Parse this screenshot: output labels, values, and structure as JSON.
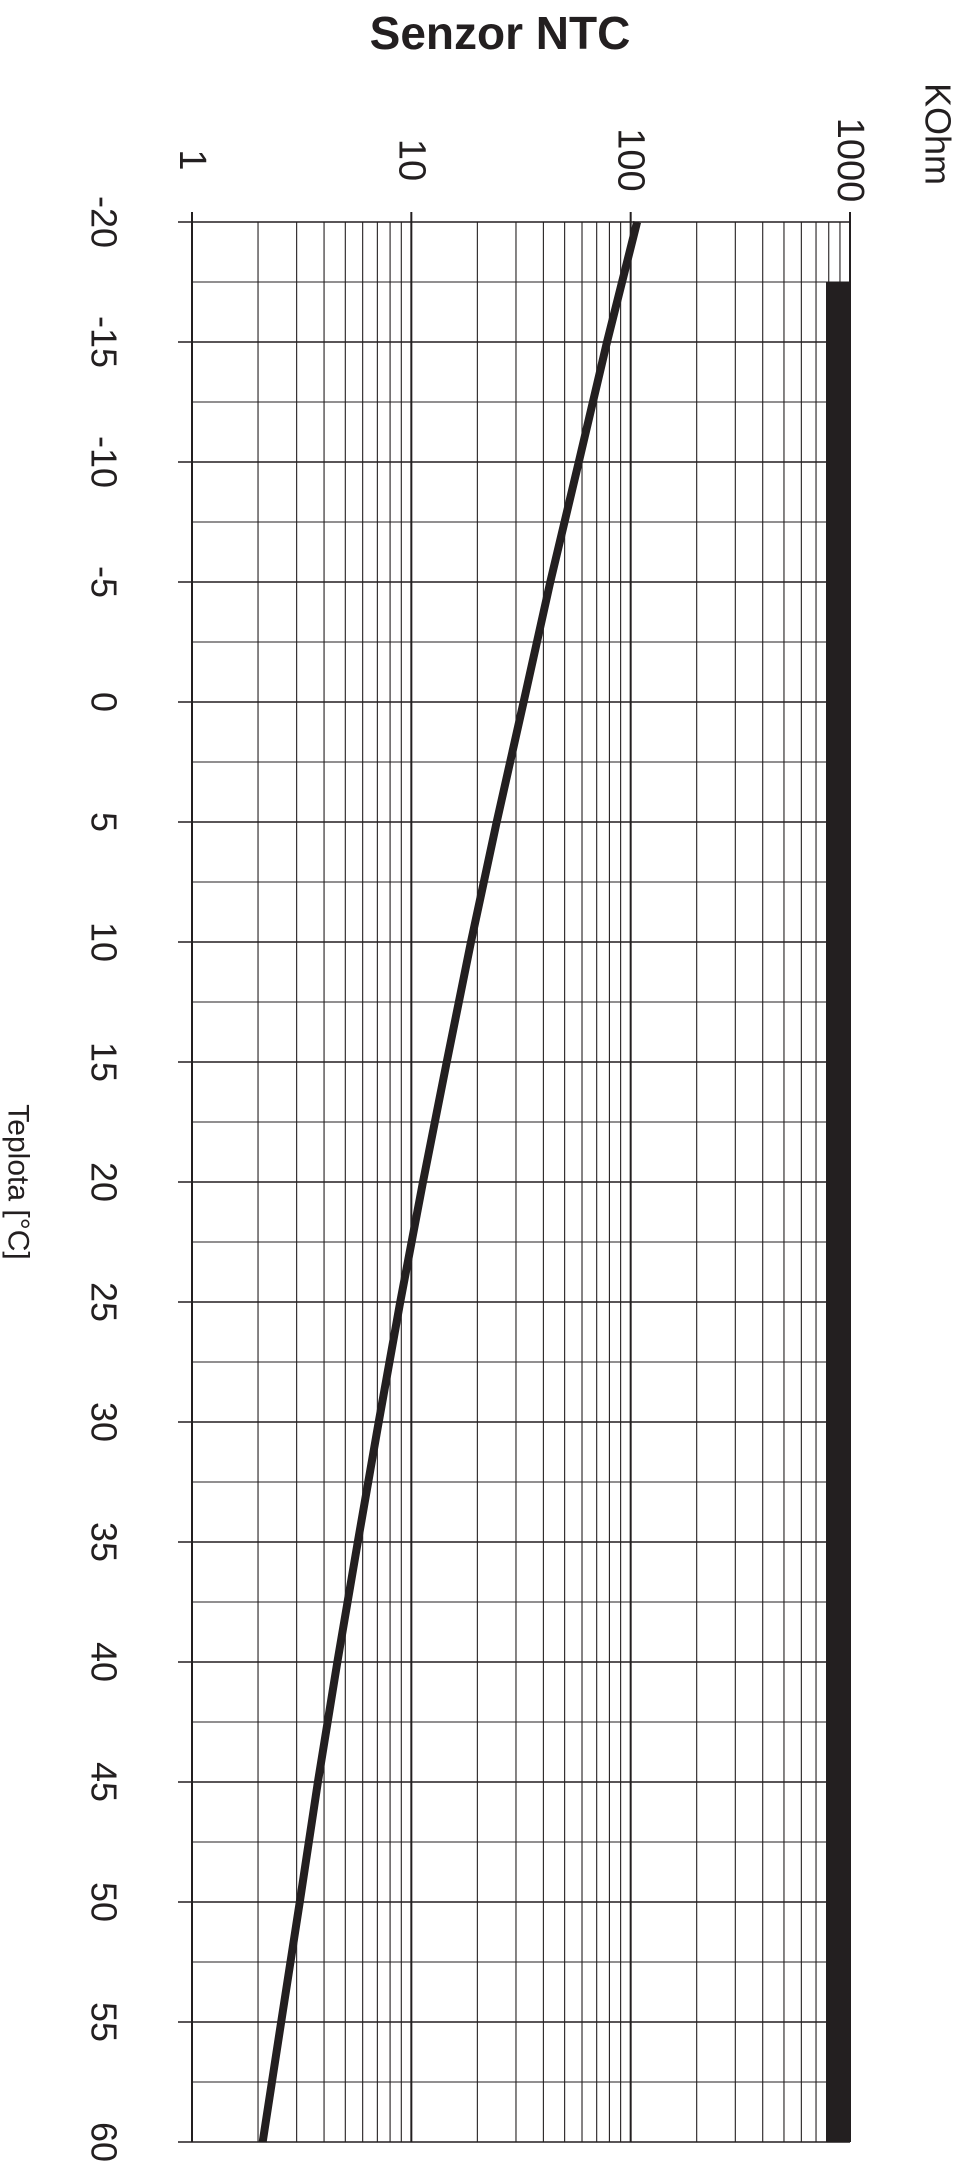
{
  "chart_data": {
    "type": "line",
    "title": "Senzor NTC",
    "xlabel": "Teplota [°C]",
    "ylabel": "KOhm",
    "x_scale": "linear",
    "y_scale": "log",
    "xlim": [
      -20,
      60
    ],
    "ylim": [
      1,
      1000
    ],
    "x_ticks": [
      -20,
      -15,
      -10,
      -5,
      0,
      5,
      10,
      15,
      20,
      25,
      30,
      35,
      40,
      45,
      50,
      55,
      60
    ],
    "x_tick_labels": [
      "-20",
      "-15",
      "-10",
      "-5",
      "0",
      "5",
      "10",
      "15",
      "20",
      "25",
      "30",
      "35",
      "40",
      "45",
      "50",
      "55",
      "60"
    ],
    "y_ticks": [
      1,
      10,
      100,
      1000
    ],
    "y_tick_labels": [
      "1",
      "10",
      "100",
      "1000"
    ],
    "grid": true,
    "orientation": "rotated-90-clockwise",
    "line_color": "#231f20",
    "grid_color": "#231f20",
    "series": [
      {
        "x": [
          -20,
          -15,
          -10,
          -5,
          0,
          5,
          10,
          15,
          20,
          25,
          30,
          35,
          40,
          45,
          50,
          55,
          60
        ],
        "y": [
          107,
          78,
          58,
          43,
          32.5,
          24.5,
          18.7,
          14.5,
          11.3,
          8.9,
          7.1,
          5.7,
          4.6,
          3.75,
          3.1,
          2.55,
          2.1
        ]
      }
    ]
  }
}
